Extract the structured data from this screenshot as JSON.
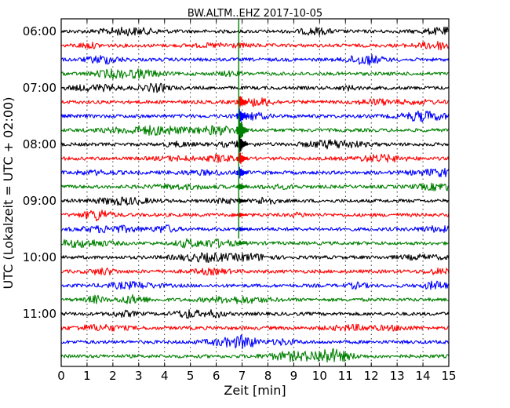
{
  "chart_data": {
    "type": "line",
    "title": "BW.ALTM..EHZ 2017-10-05",
    "xlabel": "Zeit  [min]",
    "ylabel": "UTC (Lokalzeit = UTC + 02:00)",
    "xlim": [
      0,
      15
    ],
    "xticks": [
      "0",
      "1",
      "2",
      "3",
      "4",
      "5",
      "6",
      "7",
      "8",
      "9",
      "10",
      "11",
      "12",
      "13",
      "14",
      "15"
    ],
    "yticks": [
      "06:00",
      "07:00",
      "08:00",
      "09:00",
      "10:00",
      "11:00"
    ],
    "grid": true,
    "trace_count": 24,
    "colors": [
      "#000000",
      "#ff0000",
      "#0000ff",
      "#008000"
    ],
    "event": {
      "x_min": 6.9,
      "start_trace": 5,
      "peak_trace": 7,
      "end_trace": 15
    }
  }
}
